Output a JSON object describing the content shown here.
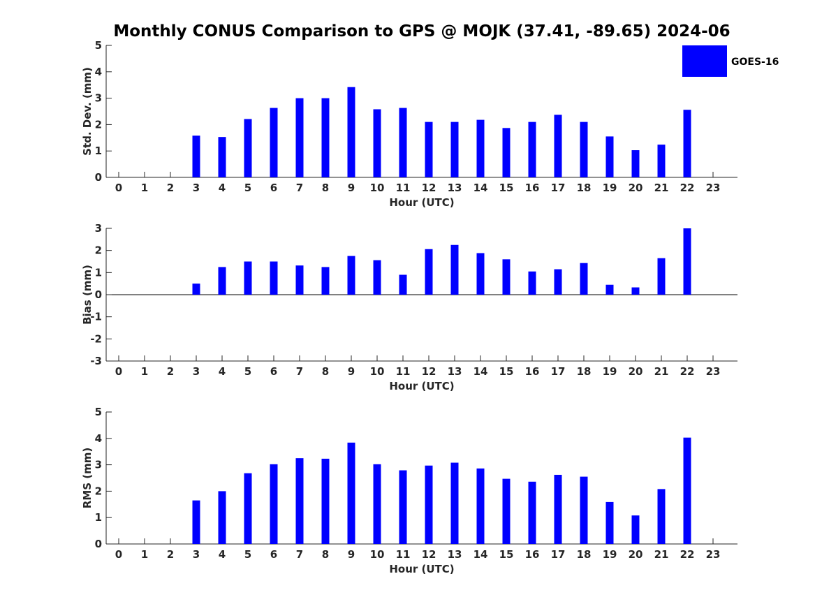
{
  "title": "Monthly CONUS Comparison to GPS @ MOJK (37.41, -89.65) 2024-06",
  "legend": {
    "label": "GOES-16",
    "color": "#0000ff",
    "placement": "top-right"
  },
  "colors": {
    "bar": "#0000ff",
    "axis": "#262626",
    "background": "#ffffff"
  },
  "chart_data": [
    {
      "type": "bar",
      "title": "Monthly CONUS Comparison to GPS @ MOJK (37.41, -89.65) 2024-06",
      "xlabel": "Hour (UTC)",
      "ylabel": "Std. Dev. (mm)",
      "ylim": [
        0,
        5
      ],
      "yticks": [
        "0",
        "1",
        "2",
        "3",
        "4",
        "5"
      ],
      "grid": false,
      "categories": [
        "0",
        "1",
        "2",
        "3",
        "4",
        "5",
        "6",
        "7",
        "8",
        "9",
        "10",
        "11",
        "12",
        "13",
        "14",
        "15",
        "16",
        "17",
        "18",
        "19",
        "20",
        "21",
        "22",
        "23"
      ],
      "series": [
        {
          "name": "GOES-16",
          "values": [
            null,
            null,
            null,
            1.58,
            1.53,
            2.21,
            2.63,
            3.0,
            3.0,
            3.42,
            2.58,
            2.63,
            2.1,
            2.1,
            2.18,
            1.87,
            2.1,
            2.37,
            2.1,
            1.55,
            1.03,
            1.24,
            2.56,
            null
          ]
        }
      ]
    },
    {
      "type": "bar",
      "xlabel": "Hour (UTC)",
      "ylabel": "Bias (mm)",
      "ylim": [
        -3,
        3
      ],
      "yticks": [
        "-3",
        "-2",
        "-1",
        "0",
        "1",
        "2",
        "3"
      ],
      "grid": false,
      "categories": [
        "0",
        "1",
        "2",
        "3",
        "4",
        "5",
        "6",
        "7",
        "8",
        "9",
        "10",
        "11",
        "12",
        "13",
        "14",
        "15",
        "16",
        "17",
        "18",
        "19",
        "20",
        "21",
        "22",
        "23"
      ],
      "series": [
        {
          "name": "GOES-16",
          "values": [
            null,
            null,
            null,
            0.5,
            1.25,
            1.5,
            1.5,
            1.32,
            1.25,
            1.75,
            1.56,
            0.9,
            2.06,
            2.25,
            1.88,
            1.6,
            1.05,
            1.15,
            1.43,
            0.45,
            0.33,
            1.65,
            3.0,
            null
          ]
        }
      ]
    },
    {
      "type": "bar",
      "xlabel": "Hour (UTC)",
      "ylabel": "RMS (mm)",
      "ylim": [
        0,
        5
      ],
      "yticks": [
        "0",
        "1",
        "2",
        "3",
        "4",
        "5"
      ],
      "grid": false,
      "categories": [
        "0",
        "1",
        "2",
        "3",
        "4",
        "5",
        "6",
        "7",
        "8",
        "9",
        "10",
        "11",
        "12",
        "13",
        "14",
        "15",
        "16",
        "17",
        "18",
        "19",
        "20",
        "21",
        "22",
        "23"
      ],
      "series": [
        {
          "name": "GOES-16",
          "values": [
            null,
            null,
            null,
            1.65,
            2.0,
            2.68,
            3.02,
            3.25,
            3.23,
            3.84,
            3.02,
            2.79,
            2.97,
            3.08,
            2.86,
            2.47,
            2.36,
            2.62,
            2.55,
            1.59,
            1.08,
            2.08,
            4.03,
            null
          ]
        }
      ]
    }
  ]
}
